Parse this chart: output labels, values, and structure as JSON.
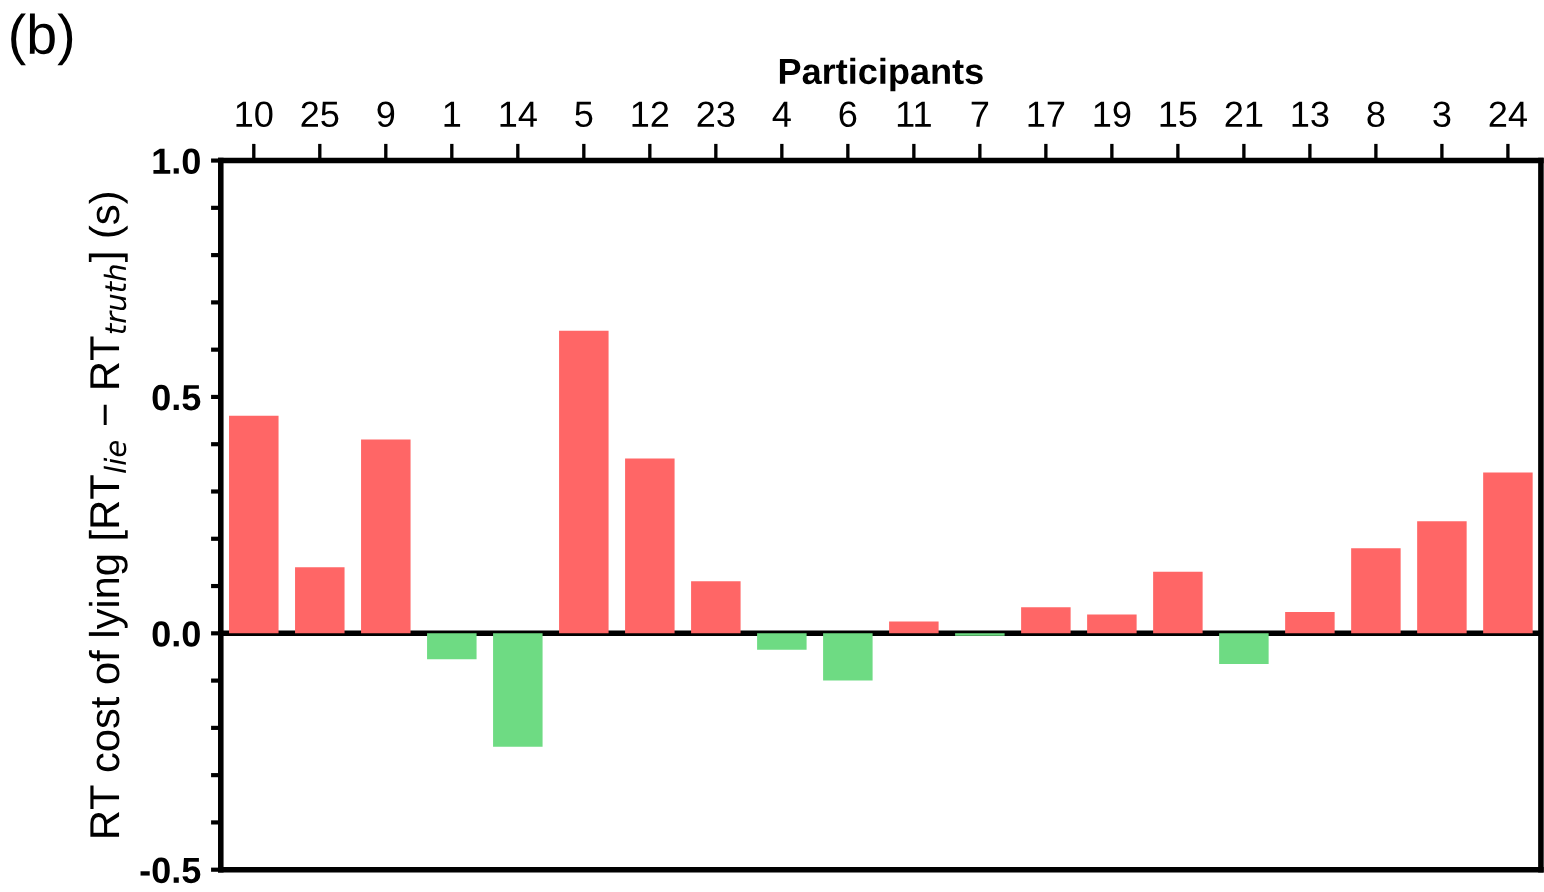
{
  "chart_data": {
    "type": "bar",
    "xlabel": "Participants",
    "ylabel": "RT cost of lying [RT$_{lie}$ − RT$_{truth}$] (s)",
    "annotations": [
      "(b)"
    ],
    "categories": [
      "10",
      "25",
      "9",
      "1",
      "14",
      "5",
      "12",
      "23",
      "4",
      "6",
      "11",
      "7",
      "17",
      "19",
      "15",
      "21",
      "13",
      "8",
      "3",
      "24"
    ],
    "values": [
      0.46,
      0.14,
      0.41,
      -0.055,
      -0.24,
      0.64,
      0.37,
      0.11,
      -0.035,
      -0.1,
      0.025,
      -0.005,
      0.055,
      0.04,
      0.13,
      -0.065,
      0.045,
      0.18,
      0.237,
      0.34
    ],
    "colors": [
      "#ff6666",
      "#ff6666",
      "#ff6666",
      "#6edb83",
      "#6edb83",
      "#ff6666",
      "#ff6666",
      "#ff6666",
      "#6edb83",
      "#6edb83",
      "#ff6666",
      "#6edb83",
      "#ff6666",
      "#ff6666",
      "#ff6666",
      "#6edb83",
      "#ff6666",
      "#ff6666",
      "#ff6666",
      "#ff6666"
    ],
    "ylim": [
      -0.5,
      1.0
    ],
    "yticks": [
      {
        "value": -0.5,
        "label": "-0.5"
      },
      {
        "value": -0.4,
        "label": null
      },
      {
        "value": -0.3,
        "label": null
      },
      {
        "value": -0.2,
        "label": null
      },
      {
        "value": -0.1,
        "label": null
      },
      {
        "value": 0.0,
        "label": "0.0"
      },
      {
        "value": 0.1,
        "label": null
      },
      {
        "value": 0.2,
        "label": null
      },
      {
        "value": 0.3,
        "label": null
      },
      {
        "value": 0.4,
        "label": null
      },
      {
        "value": 0.5,
        "label": "0.5"
      },
      {
        "value": 0.6,
        "label": null
      },
      {
        "value": 0.7,
        "label": null
      },
      {
        "value": 0.8,
        "label": null
      },
      {
        "value": 0.9,
        "label": null
      },
      {
        "value": 1.0,
        "label": "1.0"
      }
    ],
    "ref_lines": [
      {
        "axis": "y",
        "value": 0,
        "color": "#000000"
      }
    ],
    "grid": false,
    "legend": false
  }
}
